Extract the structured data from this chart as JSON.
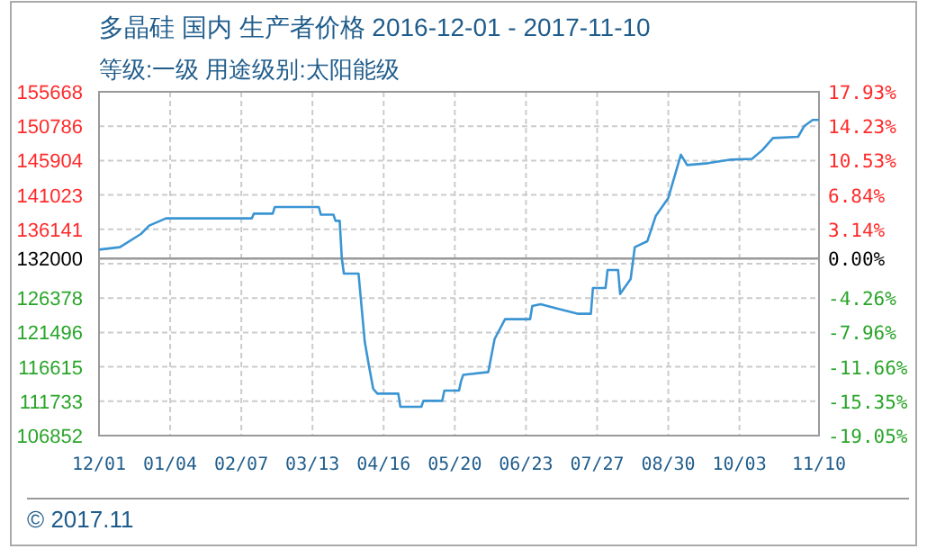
{
  "chart_data": {
    "type": "line",
    "title": "多晶硅 国内 生产者价格 2016-12-01 - 2017-11-10",
    "subtitle": "等级:一级 用途级别:太阳能级",
    "annotations": [
      "© 2017.11"
    ],
    "x": [
      "2016-12-01",
      "2016-12-11",
      "2016-12-21",
      "2016-12-25",
      "2017-01-02",
      "2017-02-12",
      "2017-02-13",
      "2017-02-22",
      "2017-02-23",
      "2017-03-16",
      "2017-03-17",
      "2017-03-23",
      "2017-03-24",
      "2017-03-26",
      "2017-03-27",
      "2017-03-28",
      "2017-04-04",
      "2017-04-07",
      "2017-04-09",
      "2017-04-11",
      "2017-04-13",
      "2017-04-23",
      "2017-04-24",
      "2017-05-04",
      "2017-05-05",
      "2017-05-14",
      "2017-05-15",
      "2017-05-22",
      "2017-05-23",
      "2017-05-24",
      "2017-06-05",
      "2017-06-08",
      "2017-06-13",
      "2017-06-25",
      "2017-06-26",
      "2017-06-30",
      "2017-07-09",
      "2017-07-18",
      "2017-07-24",
      "2017-07-25",
      "2017-07-31",
      "2017-08-01",
      "2017-08-06",
      "2017-08-07",
      "2017-08-12",
      "2017-08-14",
      "2017-08-20",
      "2017-08-24",
      "2017-08-30",
      "2017-09-05",
      "2017-09-08",
      "2017-09-18",
      "2017-09-29",
      "2017-10-09",
      "2017-10-14",
      "2017-10-19",
      "2017-10-31",
      "2017-11-03",
      "2017-11-07",
      "2017-11-10"
    ],
    "series": [
      {
        "color": "#3b95d3",
        "values": [
          133260,
          133610,
          135480,
          136680,
          137700,
          137700,
          138370,
          138370,
          139310,
          139310,
          138220,
          138220,
          137350,
          137350,
          132080,
          129850,
          129850,
          120140,
          116730,
          113500,
          112810,
          112810,
          110940,
          110940,
          111790,
          111790,
          113240,
          113240,
          114600,
          115470,
          115880,
          120560,
          123390,
          123390,
          125260,
          125510,
          124820,
          124150,
          124150,
          127810,
          127810,
          130370,
          130370,
          126970,
          129090,
          133610,
          134460,
          138040,
          140590,
          146730,
          145270,
          145530,
          146040,
          146150,
          147410,
          149100,
          149280,
          150820,
          151670,
          151670
        ]
      }
    ],
    "xlim": [
      "2016-12-01",
      "2017-11-10"
    ],
    "xticks": [
      {
        "value": "2016-12-01",
        "label": "12/01"
      },
      {
        "value": "2017-01-04",
        "label": "01/04"
      },
      {
        "value": "2017-02-07",
        "label": "02/07"
      },
      {
        "value": "2017-03-13",
        "label": "03/13"
      },
      {
        "value": "2017-04-16",
        "label": "04/16"
      },
      {
        "value": "2017-05-20",
        "label": "05/20"
      },
      {
        "value": "2017-06-23",
        "label": "06/23"
      },
      {
        "value": "2017-07-27",
        "label": "07/27"
      },
      {
        "value": "2017-08-30",
        "label": "08/30"
      },
      {
        "value": "2017-10-03",
        "label": "10/03"
      },
      {
        "value": "2017-11-10",
        "label": "11/10"
      }
    ],
    "ylim": [
      106852,
      155668
    ],
    "yticks": [
      106852,
      111733,
      116615,
      121496,
      126378,
      {
        "value": 131259,
        "label": null
      },
      132000,
      136141,
      141023,
      145904,
      150786,
      155668
    ],
    "y2lim": [
      -19.05,
      17.93
    ],
    "y2ticks": [
      {
        "value": -19.05,
        "label": "-19.05%"
      },
      {
        "value": -15.35,
        "label": "-15.35%"
      },
      {
        "value": -11.66,
        "label": "-11.66%"
      },
      {
        "value": -7.96,
        "label": "-7.96%"
      },
      {
        "value": -4.26,
        "label": "-4.26%"
      },
      {
        "value": 0,
        "label": "0.00%"
      },
      {
        "value": 3.14,
        "label": "3.14%"
      },
      {
        "value": 6.84,
        "label": "6.84%"
      },
      {
        "value": 10.53,
        "label": "10.53%"
      },
      {
        "value": 14.23,
        "label": "14.23%"
      },
      {
        "value": 17.93,
        "label": "17.93%"
      }
    ],
    "ref_lines": [
      {
        "axis": "y",
        "value": 132000,
        "color": "#999999"
      }
    ],
    "grid": true
  }
}
